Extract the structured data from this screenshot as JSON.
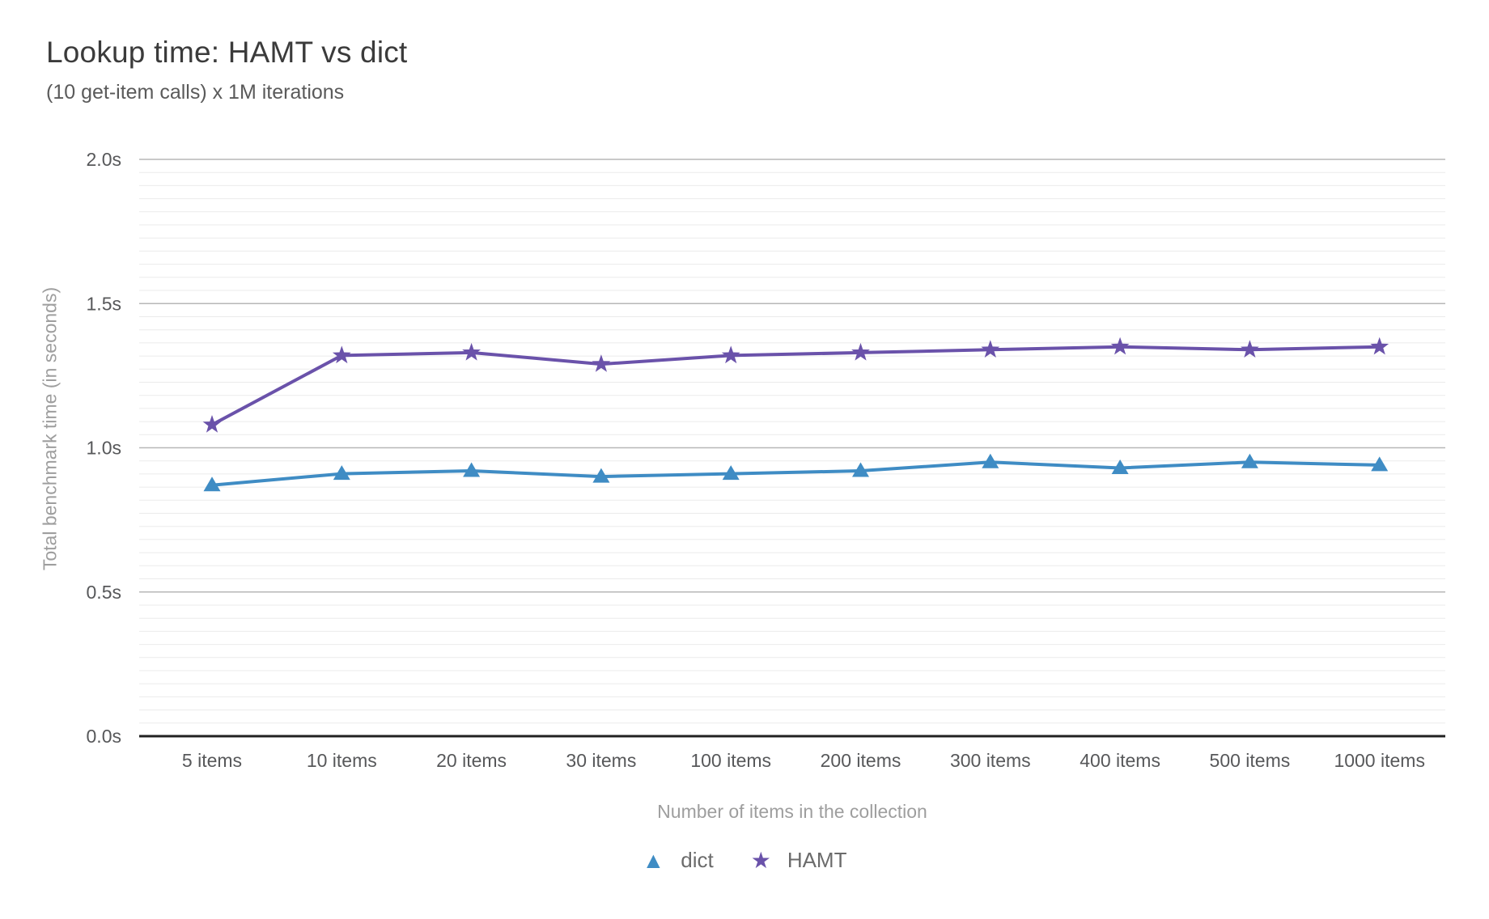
{
  "title": "Lookup time: HAMT vs dict",
  "subtitle": "(10 get-item calls) x 1M iterations",
  "chart_data": {
    "type": "line",
    "categories": [
      "5 items",
      "10 items",
      "20 items",
      "30 items",
      "100 items",
      "200 items",
      "300 items",
      "400 items",
      "500 items",
      "1000 items"
    ],
    "series": [
      {
        "name": "dict",
        "marker": "triangle",
        "color": "#3f8cc4",
        "values": [
          0.87,
          0.91,
          0.92,
          0.9,
          0.91,
          0.92,
          0.95,
          0.93,
          0.95,
          0.94
        ]
      },
      {
        "name": "HAMT",
        "marker": "star",
        "color": "#6a52aa",
        "values": [
          1.08,
          1.32,
          1.33,
          1.29,
          1.32,
          1.33,
          1.34,
          1.35,
          1.34,
          1.35
        ]
      }
    ],
    "xlabel": "Number of items in the collection",
    "ylabel": "Total benchmark time (in seconds)",
    "y_ticks": [
      {
        "value": 0.0,
        "label": "0.0s"
      },
      {
        "value": 0.5,
        "label": "0.5s"
      },
      {
        "value": 1.0,
        "label": "1.0s"
      },
      {
        "value": 1.5,
        "label": "1.5s"
      },
      {
        "value": 2.0,
        "label": "2.0s"
      }
    ],
    "ylim": [
      0,
      2.0
    ],
    "grid": {
      "major": true,
      "minor": true
    },
    "legend_position": "bottom",
    "marker_glyphs": {
      "triangle": "▲",
      "star": "★"
    }
  }
}
